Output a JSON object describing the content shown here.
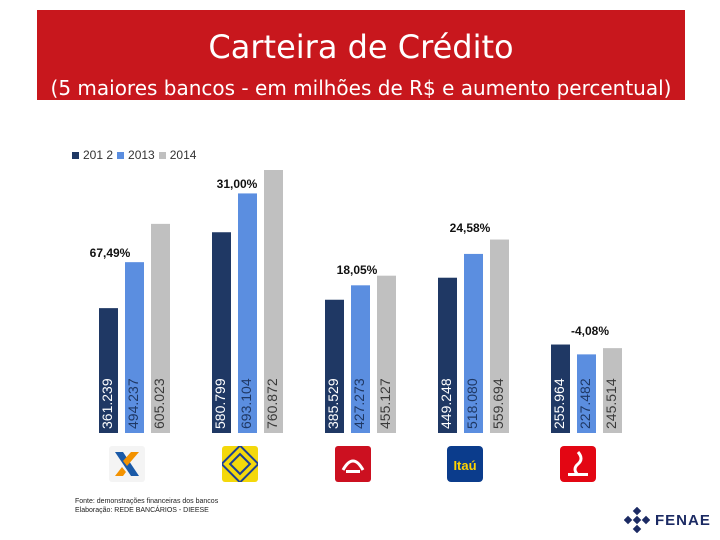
{
  "header": {
    "title": "Carteira de Crédito",
    "subtitle": "(5 maiores bancos - em milhões de R$ e aumento percentual)"
  },
  "colors": {
    "header_bg": "#c8171d",
    "s2012": "#1f3864",
    "s2013": "#5b8ee0",
    "s2014": "#c0c0c0"
  },
  "chart_data": {
    "type": "bar",
    "title": "Carteira de Crédito",
    "subtitle": "(5 maiores bancos - em milhões de R$ e aumento percentual)",
    "categories": [
      "Caixa",
      "Banco do Brasil",
      "Bradesco",
      "Itaú",
      "Santander"
    ],
    "series": [
      {
        "name": "2012",
        "legend_label": "201 2",
        "values": [
          361.239,
          580.799,
          385.529,
          449.248,
          255.964
        ],
        "labels": [
          "361.239",
          "580.799",
          "385.529",
          "449.248",
          "255.964"
        ]
      },
      {
        "name": "2013",
        "legend_label": "2013",
        "values": [
          494.237,
          693.104,
          427.273,
          518.08,
          227.482
        ],
        "labels": [
          "494.237",
          "693.104",
          "427.273",
          "518.080",
          "227.482"
        ]
      },
      {
        "name": "2014",
        "legend_label": "2014",
        "values": [
          605.023,
          760.872,
          455.127,
          559.694,
          245.514
        ],
        "labels": [
          "605.023",
          "760.872",
          "455.127",
          "559.694",
          "245.514"
        ]
      }
    ],
    "growth_labels": [
      "67,49%",
      "31,00%",
      "18,05%",
      "24,58%",
      "-4,08%"
    ],
    "ylim": [
      0,
      800
    ],
    "legend": "top-left",
    "grid": false
  },
  "logos": [
    "caixa-logo-icon",
    "banco-do-brasil-logo-icon",
    "bradesco-logo-icon",
    "itau-logo-icon",
    "santander-logo-icon"
  ],
  "itau_logo_text": "Itaú",
  "source": {
    "line1": "Fonte: demonstrações financeiras dos bancos",
    "line2": "Elaboração: REDE BANCÁRIOS - DIEESE"
  },
  "brand": {
    "name": "FENAE"
  }
}
